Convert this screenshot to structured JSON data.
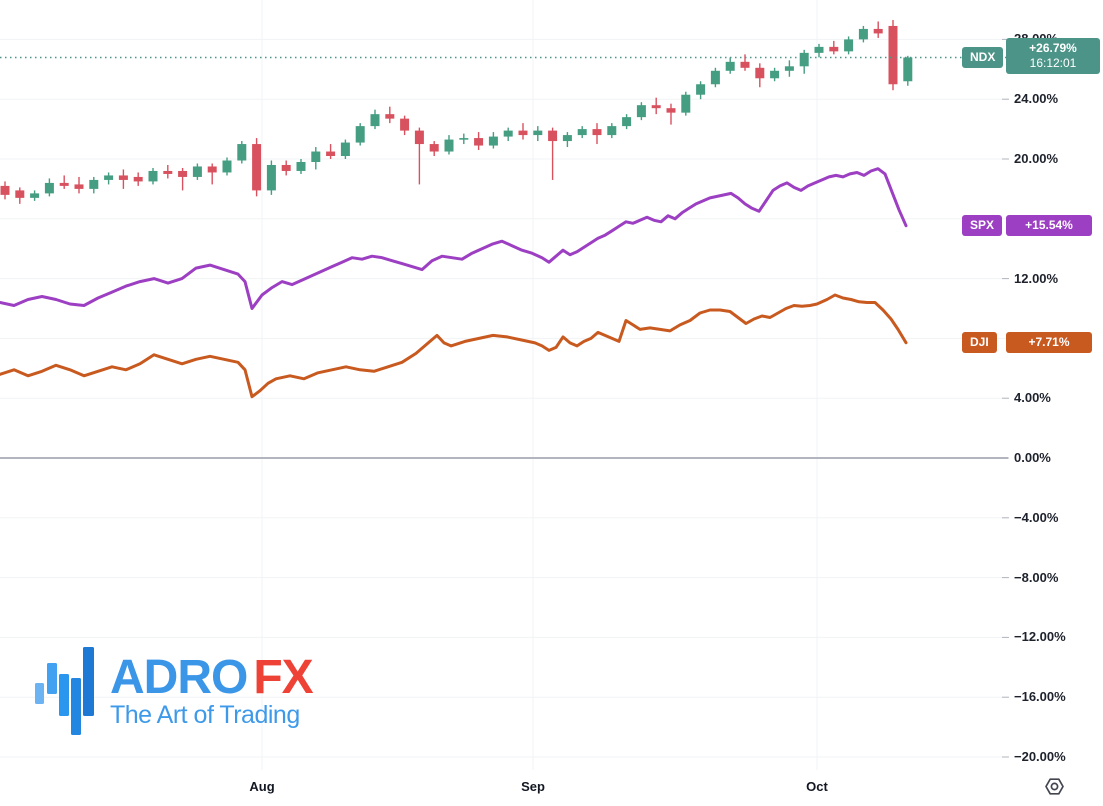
{
  "chart_data": {
    "type": "mixed",
    "title": "",
    "colors": {
      "grid": "#f0f3f5",
      "zero_line": "#b2b5be",
      "axis_text": "#1e222d"
    },
    "y_axis": {
      "unit": "%",
      "min": -20,
      "max": 28,
      "step": 4,
      "labels": [
        {
          "value": 28,
          "text": "28.00%"
        },
        {
          "value": 24,
          "text": "24.00%"
        },
        {
          "value": 20,
          "text": "20.00%"
        },
        {
          "value": 12,
          "text": "12.00%"
        },
        {
          "value": 4,
          "text": "4.00%"
        },
        {
          "value": 0,
          "text": "0.00%"
        },
        {
          "value": -4,
          "text": "−4.00%"
        },
        {
          "value": -8,
          "text": "−8.00%"
        },
        {
          "value": -12,
          "text": "−12.00%"
        },
        {
          "value": -16,
          "text": "−16.00%"
        },
        {
          "value": -20,
          "text": "−20.00%"
        }
      ]
    },
    "x_axis": {
      "months": [
        {
          "label": "Aug",
          "x": 262
        },
        {
          "label": "Sep",
          "x": 533
        },
        {
          "label": "Oct",
          "x": 817
        }
      ]
    },
    "series": [
      {
        "name": "NDX",
        "type": "candlestick",
        "color": "#4c9488",
        "color_up": "#459d82",
        "color_down": "#d8515f",
        "last_value": 26.79,
        "badge": {
          "change": "+26.79%",
          "time": "16:12:01"
        },
        "x_start": 5,
        "x_step": 14.8,
        "candles_format": "[open, high, low, close] in percent",
        "candles": [
          [
            18.2,
            18.5,
            17.3,
            17.6
          ],
          [
            17.9,
            18.1,
            17.0,
            17.4
          ],
          [
            17.4,
            17.9,
            17.2,
            17.7
          ],
          [
            17.7,
            18.7,
            17.5,
            18.4
          ],
          [
            18.4,
            18.9,
            18.0,
            18.2
          ],
          [
            18.3,
            18.8,
            17.7,
            18.0
          ],
          [
            18.0,
            18.8,
            17.7,
            18.6
          ],
          [
            18.6,
            19.1,
            18.3,
            18.9
          ],
          [
            18.9,
            19.3,
            18.0,
            18.6
          ],
          [
            18.8,
            19.1,
            18.2,
            18.5
          ],
          [
            18.5,
            19.4,
            18.3,
            19.2
          ],
          [
            19.2,
            19.6,
            18.7,
            19.0
          ],
          [
            19.2,
            19.4,
            17.9,
            18.8
          ],
          [
            18.8,
            19.7,
            18.6,
            19.5
          ],
          [
            19.5,
            19.7,
            18.3,
            19.1
          ],
          [
            19.1,
            20.1,
            18.9,
            19.9
          ],
          [
            19.9,
            21.2,
            19.7,
            21.0
          ],
          [
            21.0,
            21.4,
            17.5,
            17.9
          ],
          [
            17.9,
            19.9,
            17.6,
            19.6
          ],
          [
            19.6,
            19.9,
            18.9,
            19.2
          ],
          [
            19.2,
            20.0,
            19.0,
            19.8
          ],
          [
            19.8,
            20.8,
            19.3,
            20.5
          ],
          [
            20.5,
            21.0,
            20.0,
            20.2
          ],
          [
            20.2,
            21.3,
            20.0,
            21.1
          ],
          [
            21.1,
            22.4,
            20.9,
            22.2
          ],
          [
            22.2,
            23.3,
            22.0,
            23.0
          ],
          [
            23.0,
            23.5,
            22.4,
            22.7
          ],
          [
            22.7,
            22.9,
            21.6,
            21.9
          ],
          [
            21.9,
            22.1,
            18.3,
            21.0
          ],
          [
            21.0,
            21.2,
            20.2,
            20.5
          ],
          [
            20.5,
            21.6,
            20.3,
            21.3
          ],
          [
            21.3,
            21.7,
            21.0,
            21.4
          ],
          [
            21.4,
            21.8,
            20.6,
            20.9
          ],
          [
            20.9,
            21.8,
            20.7,
            21.5
          ],
          [
            21.5,
            22.1,
            21.2,
            21.9
          ],
          [
            21.9,
            22.4,
            21.3,
            21.6
          ],
          [
            21.6,
            22.2,
            21.2,
            21.9
          ],
          [
            21.9,
            22.1,
            18.6,
            21.2
          ],
          [
            21.2,
            21.8,
            20.8,
            21.6
          ],
          [
            21.6,
            22.2,
            21.4,
            22.0
          ],
          [
            22.0,
            22.4,
            21.0,
            21.6
          ],
          [
            21.6,
            22.4,
            21.4,
            22.2
          ],
          [
            22.2,
            23.0,
            22.0,
            22.8
          ],
          [
            22.8,
            23.8,
            22.6,
            23.6
          ],
          [
            23.6,
            24.1,
            23.0,
            23.4
          ],
          [
            23.4,
            23.7,
            22.3,
            23.1
          ],
          [
            23.1,
            24.5,
            22.9,
            24.3
          ],
          [
            24.3,
            25.2,
            24.0,
            25.0
          ],
          [
            25.0,
            26.1,
            24.8,
            25.9
          ],
          [
            25.9,
            26.8,
            25.7,
            26.5
          ],
          [
            26.5,
            27.0,
            25.9,
            26.1
          ],
          [
            26.1,
            26.4,
            24.8,
            25.4
          ],
          [
            25.4,
            26.1,
            25.2,
            25.9
          ],
          [
            25.9,
            26.6,
            25.5,
            26.2
          ],
          [
            26.2,
            27.3,
            25.7,
            27.1
          ],
          [
            27.1,
            27.7,
            26.8,
            27.5
          ],
          [
            27.5,
            27.9,
            27.0,
            27.2
          ],
          [
            27.2,
            28.2,
            27.0,
            28.0
          ],
          [
            28.0,
            28.9,
            27.8,
            28.7
          ],
          [
            28.7,
            29.2,
            28.1,
            28.4
          ],
          [
            28.9,
            29.3,
            24.6,
            25.0
          ],
          [
            25.2,
            26.9,
            24.9,
            26.79
          ]
        ]
      },
      {
        "name": "SPX",
        "type": "line",
        "color": "#9c3fc2",
        "last_value": 15.54,
        "badge": {
          "change": "+15.54%"
        },
        "points": [
          [
            0,
            10.4
          ],
          [
            14,
            10.2
          ],
          [
            28,
            10.6
          ],
          [
            42,
            10.8
          ],
          [
            56,
            10.6
          ],
          [
            70,
            10.3
          ],
          [
            84,
            10.2
          ],
          [
            98,
            10.7
          ],
          [
            112,
            11.1
          ],
          [
            126,
            11.5
          ],
          [
            140,
            11.8
          ],
          [
            154,
            12.0
          ],
          [
            168,
            11.7
          ],
          [
            182,
            12.0
          ],
          [
            196,
            12.7
          ],
          [
            210,
            12.9
          ],
          [
            224,
            12.6
          ],
          [
            238,
            12.3
          ],
          [
            245,
            11.8
          ],
          [
            252,
            10.0
          ],
          [
            262,
            10.9
          ],
          [
            272,
            11.4
          ],
          [
            282,
            11.8
          ],
          [
            292,
            11.6
          ],
          [
            302,
            11.9
          ],
          [
            312,
            12.2
          ],
          [
            322,
            12.5
          ],
          [
            332,
            12.8
          ],
          [
            342,
            13.1
          ],
          [
            352,
            13.4
          ],
          [
            362,
            13.3
          ],
          [
            372,
            13.5
          ],
          [
            382,
            13.4
          ],
          [
            392,
            13.2
          ],
          [
            402,
            13.0
          ],
          [
            412,
            12.8
          ],
          [
            422,
            12.6
          ],
          [
            432,
            13.2
          ],
          [
            442,
            13.5
          ],
          [
            452,
            13.4
          ],
          [
            462,
            13.3
          ],
          [
            472,
            13.7
          ],
          [
            482,
            14.0
          ],
          [
            492,
            14.3
          ],
          [
            502,
            14.5
          ],
          [
            512,
            14.2
          ],
          [
            522,
            13.9
          ],
          [
            532,
            13.7
          ],
          [
            542,
            13.4
          ],
          [
            549,
            13.1
          ],
          [
            556,
            13.5
          ],
          [
            563,
            13.9
          ],
          [
            570,
            13.6
          ],
          [
            577,
            13.8
          ],
          [
            584,
            14.1
          ],
          [
            591,
            14.4
          ],
          [
            598,
            14.7
          ],
          [
            605,
            14.9
          ],
          [
            612,
            15.2
          ],
          [
            619,
            15.5
          ],
          [
            626,
            15.8
          ],
          [
            633,
            15.7
          ],
          [
            640,
            15.9
          ],
          [
            647,
            16.1
          ],
          [
            654,
            15.9
          ],
          [
            661,
            15.8
          ],
          [
            668,
            16.2
          ],
          [
            675,
            16.0
          ],
          [
            682,
            16.4
          ],
          [
            689,
            16.7
          ],
          [
            696,
            17.0
          ],
          [
            703,
            17.2
          ],
          [
            710,
            17.4
          ],
          [
            717,
            17.5
          ],
          [
            724,
            17.6
          ],
          [
            731,
            17.7
          ],
          [
            738,
            17.4
          ],
          [
            745,
            17.0
          ],
          [
            752,
            16.7
          ],
          [
            759,
            16.5
          ],
          [
            766,
            17.2
          ],
          [
            773,
            17.9
          ],
          [
            780,
            18.2
          ],
          [
            787,
            18.4
          ],
          [
            794,
            18.1
          ],
          [
            801,
            17.9
          ],
          [
            808,
            18.2
          ],
          [
            815,
            18.4
          ],
          [
            822,
            18.6
          ],
          [
            829,
            18.8
          ],
          [
            836,
            18.9
          ],
          [
            843,
            18.8
          ],
          [
            850,
            19.0
          ],
          [
            857,
            19.1
          ],
          [
            864,
            18.9
          ],
          [
            871,
            19.2
          ],
          [
            878,
            19.35
          ],
          [
            885,
            19.0
          ],
          [
            892,
            17.8
          ],
          [
            899,
            16.6
          ],
          [
            906,
            15.54
          ]
        ]
      },
      {
        "name": "DJI",
        "type": "line",
        "color": "#c85a20",
        "last_value": 7.71,
        "badge": {
          "change": "+7.71%"
        },
        "points": [
          [
            0,
            5.6
          ],
          [
            14,
            5.9
          ],
          [
            28,
            5.5
          ],
          [
            42,
            5.8
          ],
          [
            56,
            6.2
          ],
          [
            70,
            5.9
          ],
          [
            84,
            5.5
          ],
          [
            98,
            5.8
          ],
          [
            112,
            6.1
          ],
          [
            126,
            5.9
          ],
          [
            140,
            6.3
          ],
          [
            154,
            6.9
          ],
          [
            168,
            6.6
          ],
          [
            182,
            6.3
          ],
          [
            196,
            6.6
          ],
          [
            210,
            6.8
          ],
          [
            224,
            6.6
          ],
          [
            238,
            6.4
          ],
          [
            245,
            5.9
          ],
          [
            252,
            4.1
          ],
          [
            260,
            4.5
          ],
          [
            268,
            5.0
          ],
          [
            276,
            5.3
          ],
          [
            290,
            5.5
          ],
          [
            304,
            5.3
          ],
          [
            318,
            5.7
          ],
          [
            332,
            5.9
          ],
          [
            346,
            6.1
          ],
          [
            360,
            5.9
          ],
          [
            374,
            5.8
          ],
          [
            388,
            6.1
          ],
          [
            402,
            6.4
          ],
          [
            416,
            7.0
          ],
          [
            430,
            7.8
          ],
          [
            437,
            8.2
          ],
          [
            444,
            7.7
          ],
          [
            451,
            7.5
          ],
          [
            465,
            7.8
          ],
          [
            479,
            8.0
          ],
          [
            493,
            8.2
          ],
          [
            507,
            8.1
          ],
          [
            521,
            7.9
          ],
          [
            535,
            7.7
          ],
          [
            542,
            7.5
          ],
          [
            549,
            7.2
          ],
          [
            556,
            7.4
          ],
          [
            563,
            8.1
          ],
          [
            570,
            7.7
          ],
          [
            577,
            7.5
          ],
          [
            584,
            7.8
          ],
          [
            591,
            8.0
          ],
          [
            598,
            8.4
          ],
          [
            605,
            8.2
          ],
          [
            612,
            8.0
          ],
          [
            619,
            7.8
          ],
          [
            626,
            9.2
          ],
          [
            633,
            8.9
          ],
          [
            640,
            8.6
          ],
          [
            650,
            8.7
          ],
          [
            660,
            8.6
          ],
          [
            670,
            8.5
          ],
          [
            680,
            8.9
          ],
          [
            690,
            9.2
          ],
          [
            700,
            9.7
          ],
          [
            710,
            9.9
          ],
          [
            720,
            9.9
          ],
          [
            730,
            9.8
          ],
          [
            738,
            9.4
          ],
          [
            746,
            9.0
          ],
          [
            754,
            9.3
          ],
          [
            762,
            9.5
          ],
          [
            770,
            9.4
          ],
          [
            778,
            9.7
          ],
          [
            786,
            10.0
          ],
          [
            794,
            10.2
          ],
          [
            802,
            10.15
          ],
          [
            810,
            10.2
          ],
          [
            817,
            10.3
          ],
          [
            827,
            10.6
          ],
          [
            835,
            10.9
          ],
          [
            843,
            10.7
          ],
          [
            851,
            10.6
          ],
          [
            859,
            10.45
          ],
          [
            867,
            10.4
          ],
          [
            875,
            10.4
          ],
          [
            883,
            9.9
          ],
          [
            891,
            9.3
          ],
          [
            898,
            8.6
          ],
          [
            906,
            7.71
          ]
        ]
      }
    ]
  },
  "logo": {
    "title_main": "ADRO",
    "title_accent": "FX",
    "tagline": "The Art of Trading",
    "title_main_color": "#3b96e8",
    "title_accent_color": "#ee4237",
    "tagline_color": "#3e9ae9",
    "bar_colors": [
      "#6cb3f4",
      "#42a1f0",
      "#2b96ee",
      "#2387e2",
      "#1d79d4"
    ]
  },
  "controls": {
    "scale_settings_icon": "gear-hexagon-icon",
    "icon_color": "#434651"
  }
}
